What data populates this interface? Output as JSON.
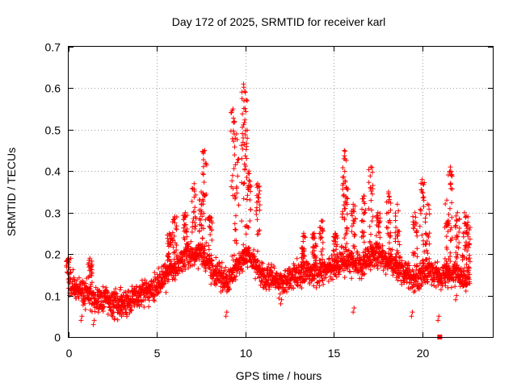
{
  "chart_data": {
    "type": "scatter",
    "title": "Day 172 of 2025, SRMTID for receiver karl",
    "xlabel": "GPS time / hours",
    "ylabel": "SRMTID / TECUs",
    "xlim": [
      0,
      24
    ],
    "ylim": [
      0,
      0.7
    ],
    "xticks": [
      0,
      5,
      10,
      15,
      20
    ],
    "yticks": [
      0,
      0.1,
      0.2,
      0.3,
      0.4,
      0.5,
      0.6,
      0.7
    ],
    "xtick_labels": [
      "0",
      "5",
      "10",
      "15",
      "20"
    ],
    "ytick_labels": [
      "0",
      "0.1",
      "0.2",
      "0.3",
      "0.4",
      "0.5",
      "0.6",
      "0.7"
    ],
    "grid": true,
    "marker": "+",
    "color": "#ff0000",
    "series": [
      {
        "name": "SRMTID",
        "baseline": [
          [
            0.0,
            0.13
          ],
          [
            0.5,
            0.12
          ],
          [
            1.0,
            0.1
          ],
          [
            1.5,
            0.09
          ],
          [
            2.0,
            0.09
          ],
          [
            2.5,
            0.08
          ],
          [
            3.0,
            0.08
          ],
          [
            3.5,
            0.09
          ],
          [
            4.0,
            0.1
          ],
          [
            4.5,
            0.11
          ],
          [
            5.0,
            0.12
          ],
          [
            5.5,
            0.15
          ],
          [
            6.0,
            0.17
          ],
          [
            6.5,
            0.19
          ],
          [
            7.0,
            0.2
          ],
          [
            7.5,
            0.2
          ],
          [
            8.0,
            0.17
          ],
          [
            8.5,
            0.15
          ],
          [
            9.0,
            0.13
          ],
          [
            9.5,
            0.17
          ],
          [
            10.0,
            0.2
          ],
          [
            10.5,
            0.18
          ],
          [
            11.0,
            0.15
          ],
          [
            11.5,
            0.14
          ],
          [
            12.0,
            0.13
          ],
          [
            12.5,
            0.14
          ],
          [
            13.0,
            0.15
          ],
          [
            13.5,
            0.16
          ],
          [
            14.0,
            0.15
          ],
          [
            14.5,
            0.16
          ],
          [
            15.0,
            0.17
          ],
          [
            15.5,
            0.18
          ],
          [
            16.0,
            0.18
          ],
          [
            16.5,
            0.17
          ],
          [
            17.0,
            0.19
          ],
          [
            17.5,
            0.2
          ],
          [
            18.0,
            0.19
          ],
          [
            18.5,
            0.17
          ],
          [
            19.0,
            0.15
          ],
          [
            19.5,
            0.14
          ],
          [
            20.0,
            0.15
          ],
          [
            20.5,
            0.16
          ],
          [
            21.0,
            0.14
          ],
          [
            21.5,
            0.16
          ],
          [
            22.0,
            0.15
          ],
          [
            22.5,
            0.14
          ],
          [
            22.7,
            0.15
          ]
        ],
        "spikes": [
          [
            0.0,
            0.19
          ],
          [
            1.2,
            0.19
          ],
          [
            5.7,
            0.25
          ],
          [
            6.0,
            0.29
          ],
          [
            6.6,
            0.3
          ],
          [
            7.1,
            0.37
          ],
          [
            7.5,
            0.35
          ],
          [
            7.7,
            0.45
          ],
          [
            8.0,
            0.29
          ],
          [
            9.3,
            0.55
          ],
          [
            9.5,
            0.49
          ],
          [
            9.9,
            0.61
          ],
          [
            10.0,
            0.59
          ],
          [
            10.2,
            0.4
          ],
          [
            10.7,
            0.37
          ],
          [
            13.3,
            0.25
          ],
          [
            13.9,
            0.25
          ],
          [
            14.3,
            0.28
          ],
          [
            15.1,
            0.25
          ],
          [
            15.6,
            0.45
          ],
          [
            15.7,
            0.36
          ],
          [
            16.1,
            0.32
          ],
          [
            16.7,
            0.34
          ],
          [
            17.1,
            0.41
          ],
          [
            17.5,
            0.3
          ],
          [
            18.1,
            0.35
          ],
          [
            18.6,
            0.32
          ],
          [
            19.6,
            0.3
          ],
          [
            20.0,
            0.38
          ],
          [
            20.3,
            0.32
          ],
          [
            21.4,
            0.33
          ],
          [
            21.6,
            0.41
          ],
          [
            22.0,
            0.3
          ],
          [
            22.4,
            0.3
          ],
          [
            22.6,
            0.29
          ]
        ],
        "minima": [
          [
            0.7,
            0.04
          ],
          [
            1.4,
            0.03
          ],
          [
            2.5,
            0.05
          ],
          [
            3.0,
            0.05
          ],
          [
            8.9,
            0.05
          ],
          [
            12.0,
            0.08
          ],
          [
            16.1,
            0.06
          ],
          [
            19.4,
            0.05
          ],
          [
            20.9,
            0.04
          ],
          [
            21.9,
            0.09
          ]
        ],
        "point_count": 2300,
        "x_end": 22.7
      }
    ],
    "annotations": [
      {
        "type": "square-marker",
        "x": 21.0,
        "y": 0.0
      }
    ]
  }
}
